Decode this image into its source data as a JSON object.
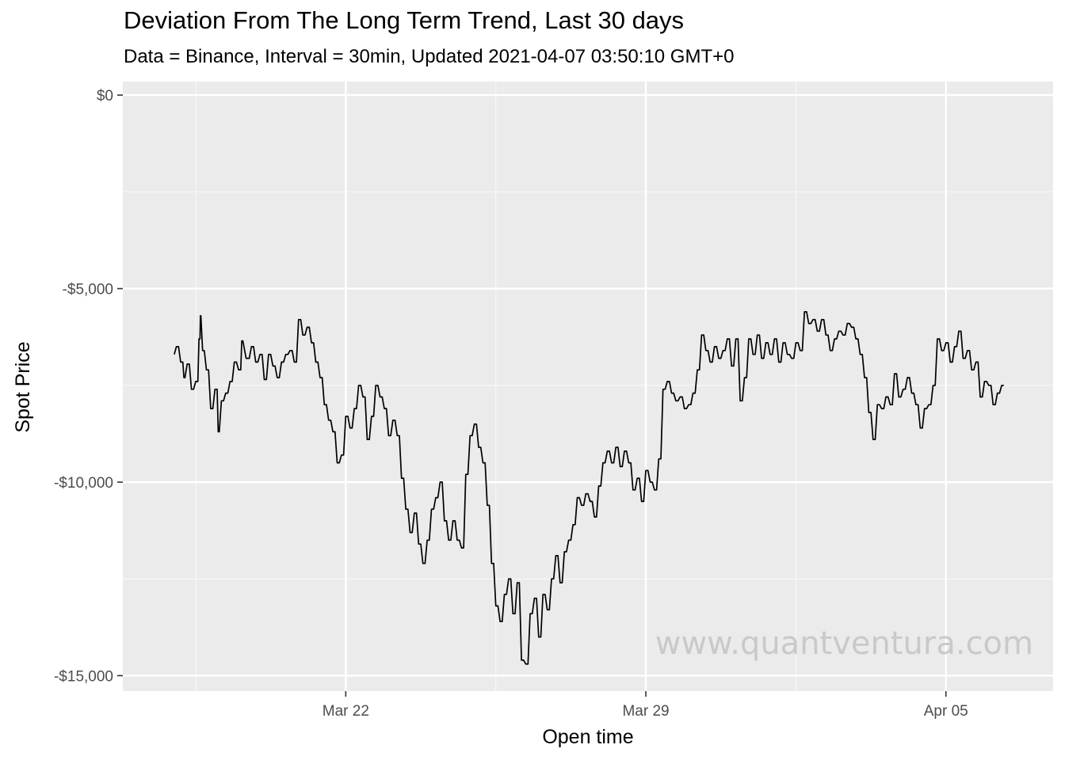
{
  "chart_data": {
    "type": "line",
    "title": "Deviation From The Long Term Trend, Last 30 days",
    "subtitle": "Data = Binance, Interval = 30min, Updated 2021-04-07 03:50:10 GMT+0",
    "xlabel": "Open time",
    "ylabel": "Spot Price",
    "watermark": "www.quantventura.com",
    "x_ticks": [
      {
        "label": "Mar 22",
        "day": 22
      },
      {
        "label": "Mar 29",
        "day": 29
      },
      {
        "label": "Apr 05",
        "day": 36
      }
    ],
    "y_ticks": [
      {
        "label": "$0",
        "value": 0
      },
      {
        "label": "-$5,000",
        "value": -5000
      },
      {
        "label": "-$10,000",
        "value": -10000
      },
      {
        "label": "-$15,000",
        "value": -15000
      }
    ],
    "xlim": [
      16.8,
      38.5
    ],
    "ylim": [
      -15400,
      350
    ],
    "grid": true,
    "series": [
      {
        "color": "#000000",
        "points": [
          [
            18.0,
            -6700
          ],
          [
            18.1,
            -6500
          ],
          [
            18.2,
            -6900
          ],
          [
            18.25,
            -7300
          ],
          [
            18.35,
            -6950
          ],
          [
            18.45,
            -7600
          ],
          [
            18.55,
            -7400
          ],
          [
            18.6,
            -6300
          ],
          [
            18.62,
            -5700
          ],
          [
            18.7,
            -6600
          ],
          [
            18.8,
            -7100
          ],
          [
            18.9,
            -8100
          ],
          [
            19.0,
            -7600
          ],
          [
            19.05,
            -8700
          ],
          [
            19.15,
            -7900
          ],
          [
            19.25,
            -7700
          ],
          [
            19.35,
            -7400
          ],
          [
            19.45,
            -6900
          ],
          [
            19.55,
            -7100
          ],
          [
            19.6,
            -6350
          ],
          [
            19.75,
            -6800
          ],
          [
            19.85,
            -6500
          ],
          [
            19.95,
            -6900
          ],
          [
            20.05,
            -6700
          ],
          [
            20.15,
            -7350
          ],
          [
            20.25,
            -6700
          ],
          [
            20.35,
            -7000
          ],
          [
            20.45,
            -7300
          ],
          [
            20.55,
            -6900
          ],
          [
            20.65,
            -6700
          ],
          [
            20.75,
            -6600
          ],
          [
            20.85,
            -6900
          ],
          [
            20.95,
            -5800
          ],
          [
            21.05,
            -6200
          ],
          [
            21.15,
            -6000
          ],
          [
            21.25,
            -6400
          ],
          [
            21.35,
            -6900
          ],
          [
            21.45,
            -7300
          ],
          [
            21.55,
            -8000
          ],
          [
            21.65,
            -8400
          ],
          [
            21.75,
            -8700
          ],
          [
            21.85,
            -9500
          ],
          [
            21.95,
            -9300
          ],
          [
            22.05,
            -8300
          ],
          [
            22.15,
            -8600
          ],
          [
            22.25,
            -8100
          ],
          [
            22.35,
            -7500
          ],
          [
            22.45,
            -7800
          ],
          [
            22.55,
            -8900
          ],
          [
            22.65,
            -8300
          ],
          [
            22.75,
            -7500
          ],
          [
            22.85,
            -7800
          ],
          [
            22.95,
            -8100
          ],
          [
            23.05,
            -8800
          ],
          [
            23.15,
            -8400
          ],
          [
            23.25,
            -8800
          ],
          [
            23.35,
            -9900
          ],
          [
            23.45,
            -10700
          ],
          [
            23.55,
            -11300
          ],
          [
            23.65,
            -10800
          ],
          [
            23.75,
            -11600
          ],
          [
            23.85,
            -12100
          ],
          [
            23.95,
            -11500
          ],
          [
            24.05,
            -10700
          ],
          [
            24.15,
            -10400
          ],
          [
            24.25,
            -10000
          ],
          [
            24.35,
            -11000
          ],
          [
            24.45,
            -11500
          ],
          [
            24.55,
            -11000
          ],
          [
            24.65,
            -11500
          ],
          [
            24.75,
            -11700
          ],
          [
            24.85,
            -9800
          ],
          [
            24.95,
            -8800
          ],
          [
            25.05,
            -8500
          ],
          [
            25.15,
            -9100
          ],
          [
            25.25,
            -9500
          ],
          [
            25.35,
            -10600
          ],
          [
            25.45,
            -12100
          ],
          [
            25.55,
            -13200
          ],
          [
            25.65,
            -13600
          ],
          [
            25.75,
            -12900
          ],
          [
            25.85,
            -12500
          ],
          [
            25.95,
            -13400
          ],
          [
            26.05,
            -12600
          ],
          [
            26.15,
            -14600
          ],
          [
            26.25,
            -14700
          ],
          [
            26.35,
            -13400
          ],
          [
            26.45,
            -13000
          ],
          [
            26.55,
            -14000
          ],
          [
            26.65,
            -12900
          ],
          [
            26.75,
            -13300
          ],
          [
            26.85,
            -12500
          ],
          [
            26.95,
            -11900
          ],
          [
            27.05,
            -12600
          ],
          [
            27.15,
            -11800
          ],
          [
            27.25,
            -11500
          ],
          [
            27.35,
            -11100
          ],
          [
            27.45,
            -10400
          ],
          [
            27.55,
            -10600
          ],
          [
            27.65,
            -10300
          ],
          [
            27.75,
            -10500
          ],
          [
            27.85,
            -10900
          ],
          [
            27.95,
            -10100
          ],
          [
            28.05,
            -9500
          ],
          [
            28.15,
            -9200
          ],
          [
            28.25,
            -9500
          ],
          [
            28.35,
            -9100
          ],
          [
            28.45,
            -9600
          ],
          [
            28.55,
            -9200
          ],
          [
            28.65,
            -9500
          ],
          [
            28.75,
            -10200
          ],
          [
            28.85,
            -9900
          ],
          [
            28.95,
            -10500
          ],
          [
            29.05,
            -9700
          ],
          [
            29.15,
            -10000
          ],
          [
            29.25,
            -10200
          ],
          [
            29.35,
            -9400
          ],
          [
            29.45,
            -7600
          ],
          [
            29.55,
            -7400
          ],
          [
            29.65,
            -7700
          ],
          [
            29.75,
            -7900
          ],
          [
            29.85,
            -7800
          ],
          [
            29.95,
            -8100
          ],
          [
            30.05,
            -8000
          ],
          [
            30.15,
            -7700
          ],
          [
            30.25,
            -7100
          ],
          [
            30.35,
            -6200
          ],
          [
            30.45,
            -6600
          ],
          [
            30.55,
            -6900
          ],
          [
            30.65,
            -6500
          ],
          [
            30.75,
            -6800
          ],
          [
            30.85,
            -6600
          ],
          [
            30.95,
            -6300
          ],
          [
            31.05,
            -7000
          ],
          [
            31.15,
            -6300
          ],
          [
            31.25,
            -7900
          ],
          [
            31.35,
            -7300
          ],
          [
            31.45,
            -6300
          ],
          [
            31.55,
            -6700
          ],
          [
            31.65,
            -6200
          ],
          [
            31.75,
            -6800
          ],
          [
            31.85,
            -6400
          ],
          [
            31.95,
            -6700
          ],
          [
            32.05,
            -6300
          ],
          [
            32.15,
            -6900
          ],
          [
            32.25,
            -6400
          ],
          [
            32.35,
            -6700
          ],
          [
            32.45,
            -6800
          ],
          [
            32.55,
            -6400
          ],
          [
            32.65,
            -6600
          ],
          [
            32.75,
            -5600
          ],
          [
            32.85,
            -5900
          ],
          [
            32.95,
            -5800
          ],
          [
            33.05,
            -6100
          ],
          [
            33.15,
            -5800
          ],
          [
            33.25,
            -6200
          ],
          [
            33.35,
            -6600
          ],
          [
            33.45,
            -6300
          ],
          [
            33.55,
            -6100
          ],
          [
            33.65,
            -6200
          ],
          [
            33.75,
            -5900
          ],
          [
            33.85,
            -6000
          ],
          [
            33.95,
            -6300
          ],
          [
            34.05,
            -6700
          ],
          [
            34.15,
            -7300
          ],
          [
            34.25,
            -8200
          ],
          [
            34.35,
            -8900
          ],
          [
            34.45,
            -8000
          ],
          [
            34.55,
            -8100
          ],
          [
            34.65,
            -7800
          ],
          [
            34.75,
            -8000
          ],
          [
            34.85,
            -7200
          ],
          [
            34.95,
            -7800
          ],
          [
            35.05,
            -7600
          ],
          [
            35.15,
            -7300
          ],
          [
            35.25,
            -7700
          ],
          [
            35.35,
            -8000
          ],
          [
            35.45,
            -8600
          ],
          [
            35.55,
            -8100
          ],
          [
            35.65,
            -8000
          ],
          [
            35.75,
            -7500
          ],
          [
            35.85,
            -6300
          ],
          [
            35.95,
            -6600
          ],
          [
            36.05,
            -6400
          ],
          [
            36.15,
            -6900
          ],
          [
            36.25,
            -6500
          ],
          [
            36.35,
            -6100
          ],
          [
            36.45,
            -6800
          ],
          [
            36.55,
            -6600
          ],
          [
            36.65,
            -7100
          ],
          [
            36.75,
            -6900
          ],
          [
            36.85,
            -7800
          ],
          [
            36.95,
            -7400
          ],
          [
            37.05,
            -7500
          ],
          [
            37.15,
            -8000
          ],
          [
            37.25,
            -7700
          ],
          [
            37.35,
            -7500
          ]
        ]
      }
    ]
  }
}
